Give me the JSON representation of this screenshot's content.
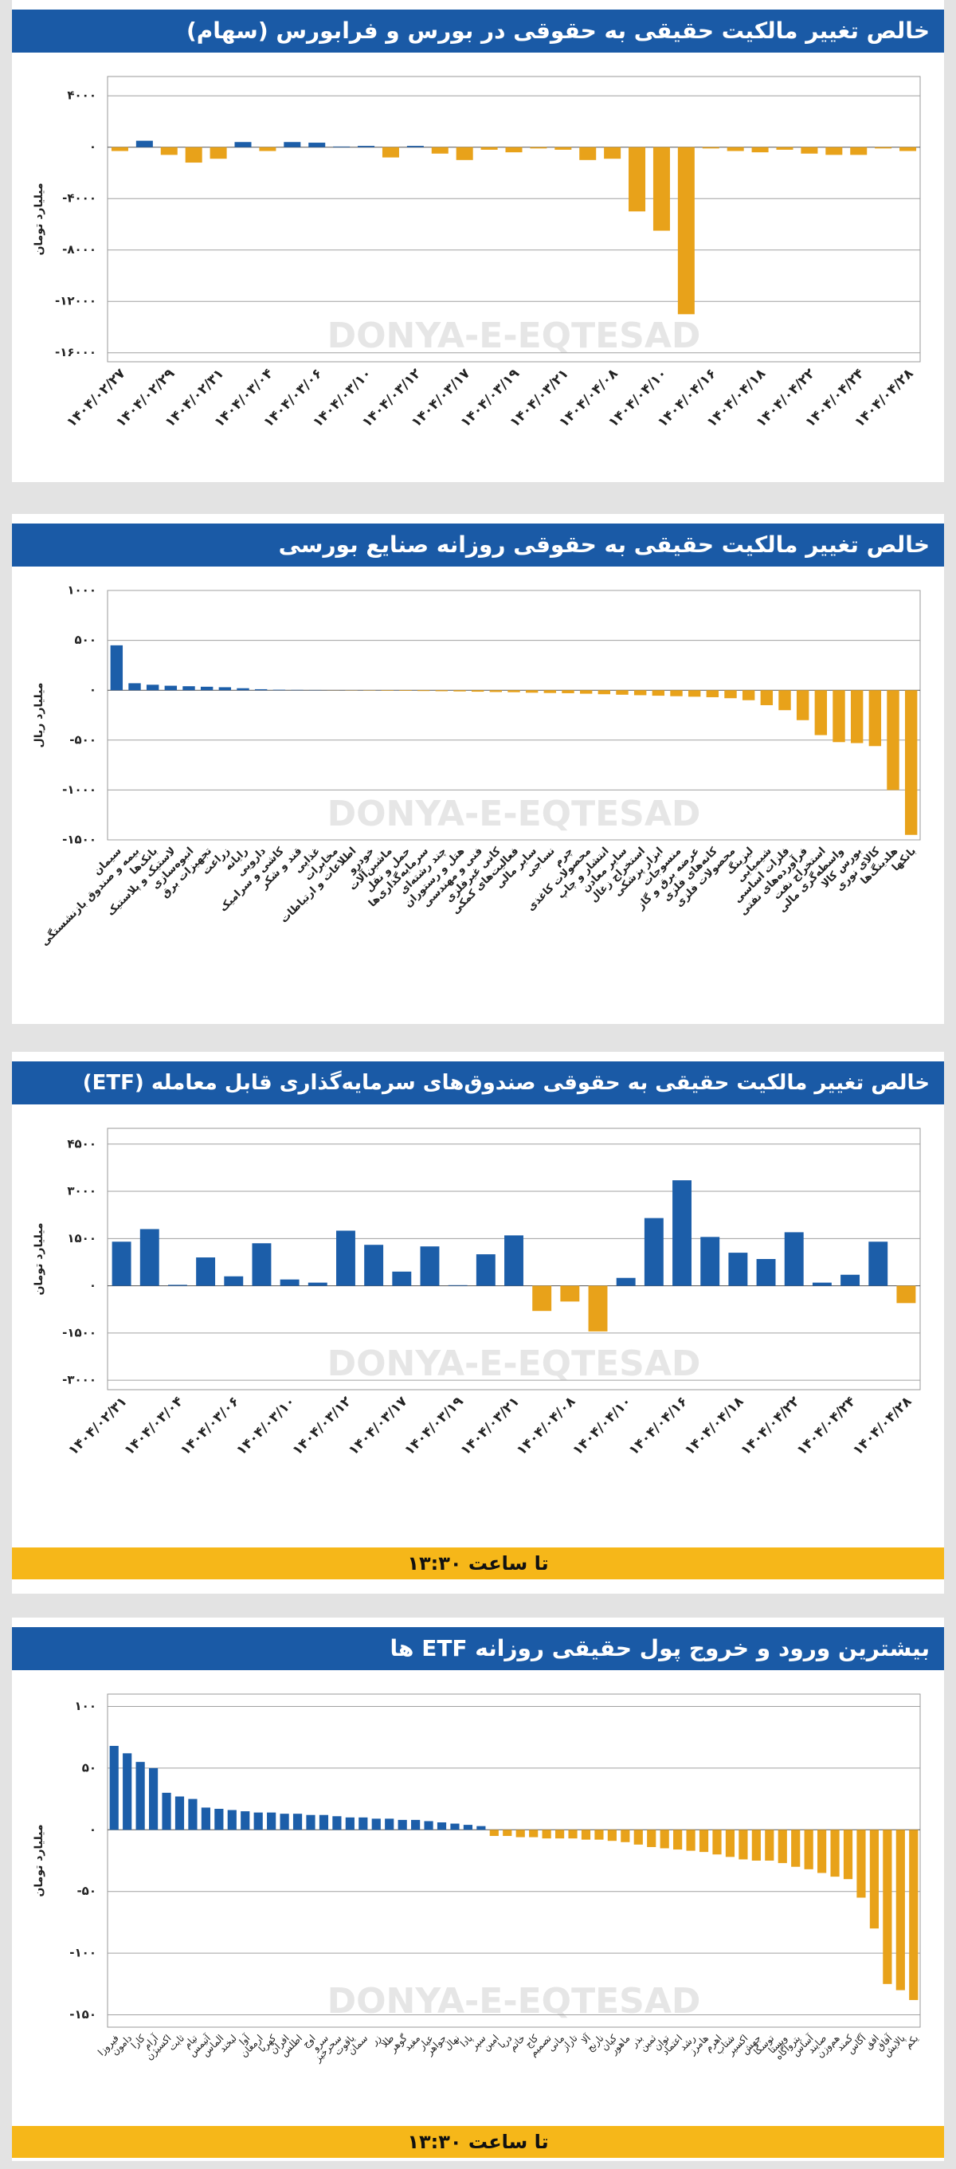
{
  "chart_data": [
    {
      "type": "bar",
      "title": "خالص تغییر مالکیت حقیقی به حقوقی در بورس و فرابورس (سهام)",
      "y_label": "میلیارد تومان",
      "watermark": "DONYA-E-EQTESAD",
      "positive_color": "#1c5ea9",
      "negative_color": "#e8a21a",
      "grid": true,
      "categories": [
        "۱۴۰۴/۰۲/۲۷",
        null,
        "۱۴۰۴/۰۲/۲۹",
        null,
        "۱۴۰۴/۰۲/۳۱",
        null,
        "۱۴۰۴/۰۳/۰۴",
        null,
        "۱۴۰۴/۰۳/۰۶",
        null,
        "۱۴۰۴/۰۳/۱۰",
        null,
        "۱۴۰۴/۰۳/۱۲",
        null,
        "۱۴۰۴/۰۳/۱۷",
        null,
        "۱۴۰۴/۰۳/۱۹",
        null,
        "۱۴۰۴/۰۳/۲۱",
        null,
        "۱۴۰۴/۰۴/۰۸",
        null,
        "۱۴۰۴/۰۴/۱۰",
        null,
        "۱۴۰۴/۰۴/۱۶",
        null,
        "۱۴۰۴/۰۴/۱۸",
        null,
        "۱۴۰۴/۰۴/۲۲",
        null,
        "۱۴۰۴/۰۴/۲۴",
        null,
        "۱۴۰۴/۰۴/۲۸"
      ],
      "values": [
        -300,
        500,
        -600,
        -1200,
        -900,
        400,
        -300,
        400,
        350,
        50,
        100,
        -800,
        100,
        -500,
        -1000,
        -200,
        -400,
        -100,
        -200,
        -1000,
        -900,
        -5000,
        -6500,
        -13000,
        -100,
        -300,
        -400,
        -200,
        -500,
        -600,
        -600,
        -100,
        -300
      ],
      "ylim": [
        -16700,
        5500
      ],
      "yticks": [
        {
          "value": 4000,
          "label": "۴۰۰۰"
        },
        {
          "value": 0,
          "label": "۰"
        },
        {
          "value": -4000,
          "label": "-۴۰۰۰"
        },
        {
          "value": -8000,
          "label": "-۸۰۰۰"
        },
        {
          "value": -12000,
          "label": "-۱۲۰۰۰"
        },
        {
          "value": -16000,
          "label": "-۱۶۰۰۰"
        }
      ]
    },
    {
      "type": "bar",
      "title": "خالص تغییر مالکیت حقیقی به حقوقی روزانه صنایع بورسی",
      "y_label": "میلیارد ریال",
      "watermark": "DONYA-E-EQTESAD",
      "positive_color": "#1c5ea9",
      "negative_color": "#e8a21a",
      "grid": true,
      "categories": [
        "سیمان",
        "بیمه و صندوق بازنشستگی",
        "بانک‌ها",
        "لاستیک و پلاستیک",
        "انبوه‌سازی",
        "تجهیزات برق",
        "زراعت",
        "رایانه",
        "دارویی",
        "کاشی و سرامیک",
        "قند و شکر",
        "غذایی",
        "مخابرات",
        "اطلاعات و ارتباطات",
        "خودرو",
        "ماشین‌آلات",
        "حمل و نقل",
        "سرمایه‌گذاری‌ها",
        "چند رشته‌ای",
        "هتل و رستوران",
        "فنی و مهندسی",
        "کانی غیرفلزی",
        "فعالیت‌های کمکی",
        "سایر مالی",
        "نساجی",
        "چرم",
        "محصولات کاغذی",
        "انتشار و چاپ",
        "سایر معادن",
        "استخراج زغال",
        "ابزار پزشکی",
        "منسوجات",
        "عرضه برق و گاز",
        "کانه‌های فلزی",
        "محصولات فلزی",
        "لیزینگ",
        "شیمیایی",
        "فلزات اساسی",
        "فرآورده‌های نفتی",
        "استخراج نفت",
        "واسطه‌گری مالی",
        "بورس کالا",
        "کالای نوری",
        "هلدینگ‌ها",
        "بانکها"
      ],
      "values": [
        450,
        70,
        55,
        45,
        40,
        35,
        30,
        20,
        10,
        5,
        3,
        2,
        -1,
        -2,
        -3,
        -5,
        -6,
        -8,
        -10,
        -12,
        -15,
        -18,
        -20,
        -25,
        -28,
        -30,
        -35,
        -40,
        -45,
        -50,
        -55,
        -60,
        -65,
        -70,
        -80,
        -100,
        -150,
        -200,
        -300,
        -450,
        -520,
        -530,
        -560,
        -1000,
        -1450
      ],
      "ylim": [
        -1500,
        1000
      ],
      "yticks": [
        {
          "value": 1000,
          "label": "۱۰۰۰"
        },
        {
          "value": 500,
          "label": "۵۰۰"
        },
        {
          "value": 0,
          "label": "۰"
        },
        {
          "value": -500,
          "label": "-۵۰۰"
        },
        {
          "value": -1000,
          "label": "-۱۰۰۰"
        },
        {
          "value": -1500,
          "label": "-۱۵۰۰"
        }
      ]
    },
    {
      "type": "bar",
      "title": "خالص تغییر مالکیت حقیقی به حقوقی صندوق‌های سرمایه‌گذاری قابل معامله (ETF)",
      "y_label": "میلیارد تومان",
      "watermark": "DONYA-E-EQTESAD",
      "note": "تا ساعت ۱۳:۳۰",
      "positive_color": "#1c5ea9",
      "negative_color": "#e8a21a",
      "grid": true,
      "categories": [
        "۱۴۰۴/۰۲/۳۱",
        null,
        "۱۴۰۴/۰۳/۰۴",
        null,
        "۱۴۰۴/۰۳/۰۶",
        null,
        "۱۴۰۴/۰۳/۱۰",
        null,
        "۱۴۰۴/۰۳/۱۲",
        null,
        "۱۴۰۴/۰۳/۱۷",
        null,
        "۱۴۰۴/۰۳/۱۹",
        null,
        "۱۴۰۴/۰۳/۲۱",
        null,
        "۱۴۰۴/۰۴/۰۸",
        null,
        "۱۴۰۴/۰۴/۱۰",
        null,
        "۱۴۰۴/۰۴/۱۶",
        null,
        "۱۴۰۴/۰۴/۱۸",
        null,
        "۱۴۰۴/۰۴/۲۲",
        null,
        "۱۴۰۴/۰۴/۲۴",
        null,
        "۱۴۰۴/۰۴/۲۸"
      ],
      "values": [
        1400,
        1800,
        30,
        900,
        300,
        1350,
        200,
        100,
        1750,
        1300,
        450,
        1250,
        20,
        1000,
        1600,
        -800,
        -500,
        -1450,
        250,
        2150,
        3350,
        1550,
        1050,
        850,
        1700,
        100,
        350,
        1400,
        -550
      ],
      "ylim": [
        -3300,
        5000
      ],
      "yticks": [
        {
          "value": 4500,
          "label": "۴۵۰۰"
        },
        {
          "value": 3000,
          "label": "۳۰۰۰"
        },
        {
          "value": 1500,
          "label": "۱۵۰۰"
        },
        {
          "value": 0,
          "label": "۰"
        },
        {
          "value": -1500,
          "label": "-۱۵۰۰"
        },
        {
          "value": -3000,
          "label": "-۳۰۰۰"
        }
      ]
    },
    {
      "type": "bar",
      "title": "بیشترین ورود و خروج پول حقیقی روزانه ETF ها",
      "y_label": "میلیارد تومان",
      "watermark": "DONYA-E-EQTESAD",
      "note": "تا ساعت ۱۳:۳۰",
      "positive_color": "#1c5ea9",
      "negative_color": "#e8a21a",
      "grid": true,
      "categories": [
        "فیروزا",
        "دامون",
        "کارا",
        "آرام",
        "اکسیژن",
        "ثابت",
        "تیام",
        "آتیمس",
        "الماس",
        "لبخند",
        "آوا",
        "ارمغان",
        "کهربا",
        "افران",
        "اطلس",
        "اوج",
        "سرو",
        "سحرخیز",
        "یاقوت",
        "سمان",
        "زر",
        "طلا",
        "گوهر",
        "مفید",
        "عیار",
        "جواهر",
        "نهال",
        "پادا",
        "سپر",
        "امین",
        "دریا",
        "خاتم",
        "کاج",
        "تصمیم",
        "مانی",
        "تاراز",
        "آلا",
        "نارنج",
        "کیان",
        "ماهور",
        "بذر",
        "ثمین",
        "توان",
        "اعتماد",
        "رشد",
        "هامرز",
        "اهرم",
        "شتاب",
        "اکسیر",
        "جهش",
        "توسکا",
        "ویستا",
        "پتروآگاه",
        "آساس",
        "صایند",
        "هم‌وزن",
        "کمند",
        "آگاس",
        "افق",
        "آفاق",
        "پالایش",
        "یکم"
      ],
      "values": [
        68,
        62,
        55,
        50,
        30,
        27,
        25,
        18,
        17,
        16,
        15,
        14,
        14,
        13,
        13,
        12,
        12,
        11,
        10,
        10,
        9,
        9,
        8,
        8,
        7,
        6,
        5,
        4,
        3,
        -5,
        -5,
        -6,
        -6,
        -7,
        -7,
        -7,
        -8,
        -8,
        -9,
        -10,
        -12,
        -14,
        -15,
        -16,
        -17,
        -18,
        -20,
        -22,
        -24,
        -25,
        -25,
        -27,
        -30,
        -32,
        -35,
        -38,
        -40,
        -55,
        -80,
        -125,
        -130,
        -138
      ],
      "ylim": [
        -160,
        110
      ],
      "yticks": [
        {
          "value": 100,
          "label": "۱۰۰"
        },
        {
          "value": 50,
          "label": "۵۰"
        },
        {
          "value": 0,
          "label": "۰"
        },
        {
          "value": -50,
          "label": "-۵۰"
        },
        {
          "value": -100,
          "label": "-۱۰۰"
        },
        {
          "value": -150,
          "label": "-۱۵۰"
        }
      ]
    }
  ]
}
